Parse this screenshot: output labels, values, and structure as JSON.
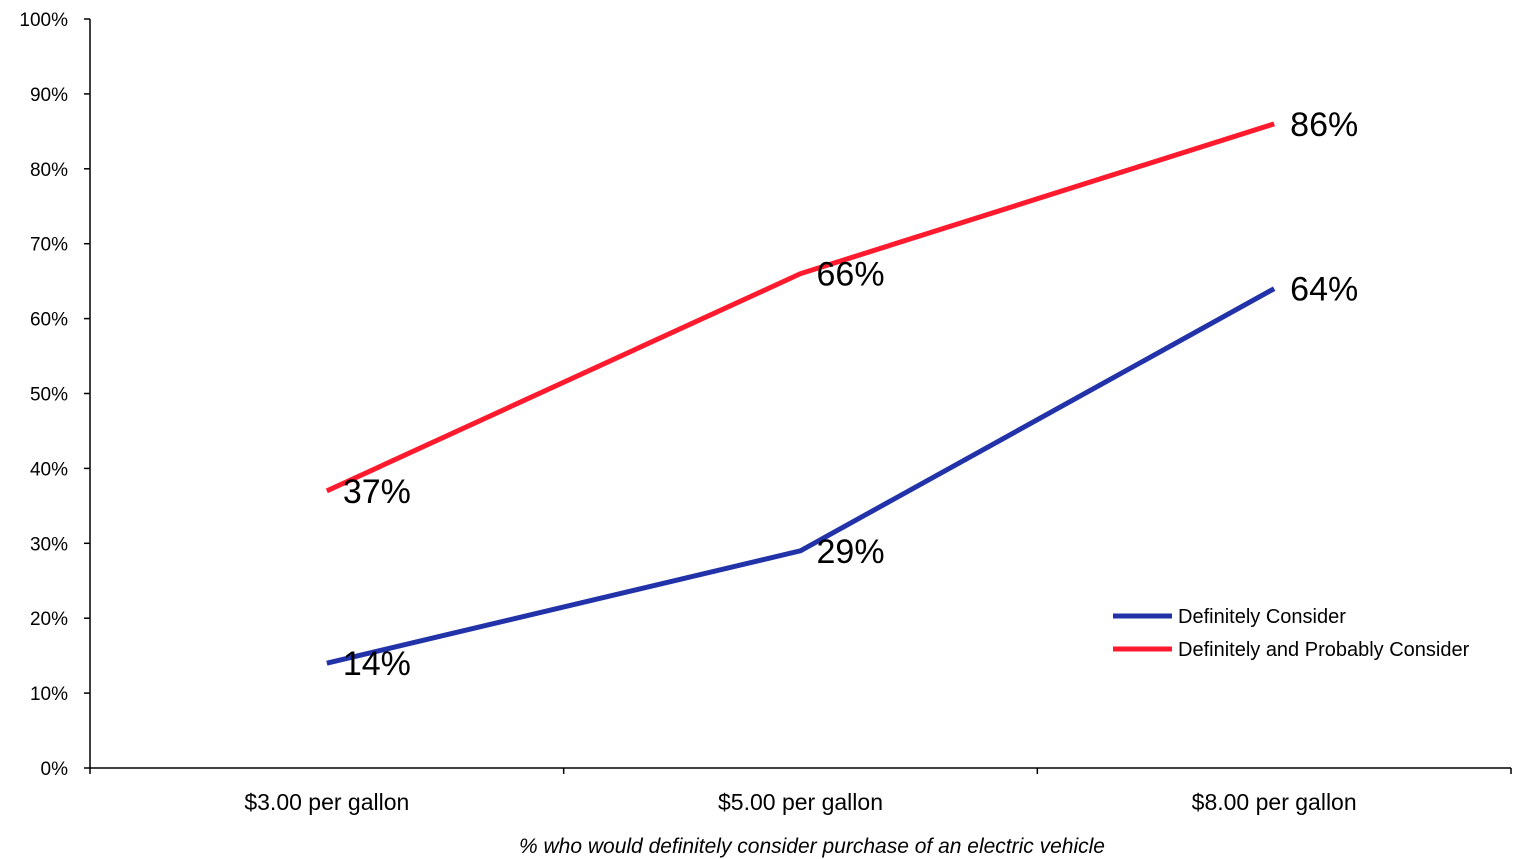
{
  "chart_data": {
    "type": "line",
    "title": "",
    "xlabel": "% who would definitely consider purchase of an electric vehicle",
    "ylabel": "",
    "categories": [
      "$3.00 per gallon",
      "$5.00 per gallon",
      "$8.00 per gallon"
    ],
    "ylim": [
      0,
      100
    ],
    "yticks": [
      0,
      10,
      20,
      30,
      40,
      50,
      60,
      70,
      80,
      90,
      100
    ],
    "ytick_labels": [
      "0%",
      "10%",
      "20%",
      "30%",
      "40%",
      "50%",
      "60%",
      "70%",
      "80%",
      "90%",
      "100%"
    ],
    "grid": false,
    "legend_position": "bottom-right",
    "series": [
      {
        "name": "Definitely Consider",
        "color": "#2233aa",
        "values": [
          14,
          29,
          64
        ],
        "labels": [
          "14%",
          "29%",
          "64%"
        ]
      },
      {
        "name": "Definitely and Probably Consider",
        "color": "#ff1a2e",
        "values": [
          37,
          66,
          86
        ],
        "labels": [
          "37%",
          "66%",
          "86%"
        ]
      }
    ]
  }
}
